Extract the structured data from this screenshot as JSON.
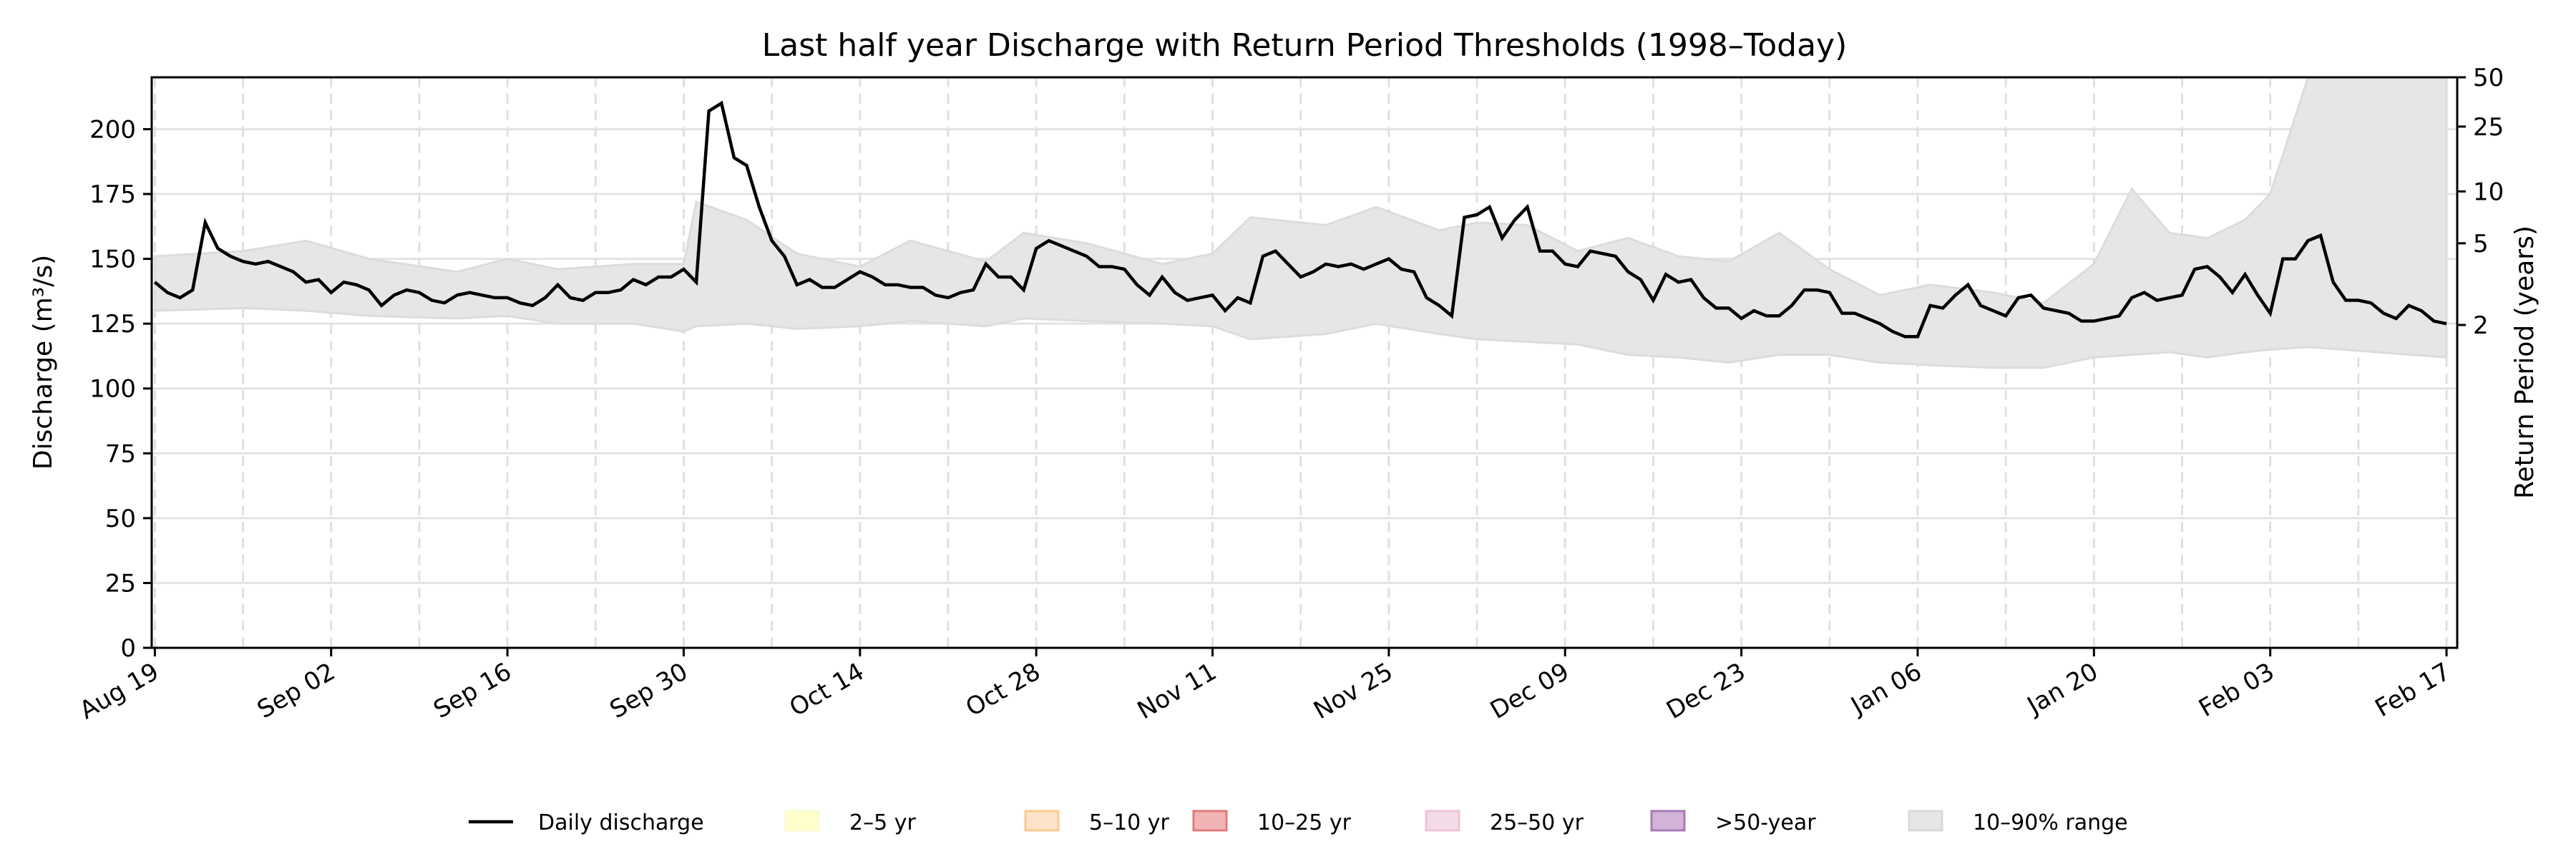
{
  "chart_data": {
    "type": "line",
    "title": "Last half year Discharge with Return Period Thresholds (1998–Today)",
    "ylabel": "Discharge (m³/s)",
    "y2label": "Return Period (years)",
    "ylim": [
      0,
      220
    ],
    "yticks": [
      0,
      25,
      50,
      75,
      100,
      125,
      150,
      175,
      200
    ],
    "y2ticks": [
      {
        "label": "2",
        "discharge": 124.5
      },
      {
        "label": "5",
        "discharge": 156
      },
      {
        "label": "10",
        "discharge": 176
      },
      {
        "label": "25",
        "discharge": 201
      },
      {
        "label": "50",
        "discharge": 220
      }
    ],
    "xticks": [
      "Aug 19",
      "Sep 02",
      "Sep 16",
      "Sep 30",
      "Oct 14",
      "Oct 28",
      "Nov 11",
      "Nov 25",
      "Dec 09",
      "Dec 23",
      "Jan 06",
      "Jan 20",
      "Feb 03",
      "Feb 17"
    ],
    "grid": true,
    "legend_position": "bottom",
    "legend": [
      {
        "label": "Daily discharge",
        "kind": "line",
        "color": "#000000"
      },
      {
        "label": "2–5 yr",
        "kind": "patch",
        "color": "#ffffcc",
        "edge": "#fbfbd0"
      },
      {
        "label": "5–10 yr",
        "kind": "patch",
        "color": "#fde3c8",
        "edge": "#fbc98f"
      },
      {
        "label": "10–25 yr",
        "kind": "patch",
        "color": "#f0b4b4",
        "edge": "#e07b7b"
      },
      {
        "label": "25–50 yr",
        "kind": "patch",
        "color": "#f4dbe8",
        "edge": "#eec3d9"
      },
      {
        "label": ">50-year",
        "kind": "patch",
        "color": "#d1b4d6",
        "edge": "#a97ab5"
      },
      {
        "label": "10–90% range",
        "kind": "patch",
        "color": "#e6e6e6",
        "edge": "#d9d9d9"
      }
    ],
    "series": [
      {
        "name": "Daily discharge",
        "color": "#000000",
        "start": "Aug 19",
        "values": [
          141,
          137,
          135,
          138,
          164,
          154,
          151,
          149,
          148,
          149,
          147,
          145,
          141,
          142,
          137,
          141,
          140,
          138,
          132,
          136,
          138,
          137,
          134,
          133,
          136,
          137,
          136,
          135,
          135,
          133,
          132,
          135,
          140,
          135,
          134,
          137,
          137,
          138,
          142,
          140,
          143,
          143,
          146,
          141,
          207,
          210,
          189,
          186,
          170,
          157,
          151,
          140,
          142,
          139,
          139,
          142,
          145,
          143,
          140,
          140,
          139,
          139,
          136,
          135,
          137,
          138,
          148,
          143,
          143,
          138,
          154,
          157,
          155,
          153,
          151,
          147,
          147,
          146,
          140,
          136,
          143,
          137,
          134,
          135,
          136,
          130,
          135,
          133,
          151,
          153,
          148,
          143,
          145,
          148,
          147,
          148,
          146,
          148,
          150,
          146,
          145,
          135,
          132,
          128,
          166,
          167,
          170,
          158,
          165,
          170,
          153,
          153,
          148,
          147,
          153,
          152,
          151,
          145,
          142,
          134,
          144,
          141,
          142,
          135,
          131,
          131,
          127,
          130,
          128,
          128,
          132,
          138,
          138,
          137,
          129,
          129,
          127,
          125,
          122,
          120,
          120,
          132,
          131,
          136,
          140,
          132,
          130,
          128,
          135,
          136,
          131,
          130,
          129,
          126,
          126,
          127,
          128,
          135,
          137,
          134,
          135,
          136,
          146,
          147,
          143,
          137,
          144,
          136,
          129,
          150,
          150,
          157,
          159,
          141,
          134,
          134,
          133,
          129,
          127,
          132,
          130,
          126,
          125
        ]
      }
    ],
    "band": {
      "name": "10–90% range",
      "color": "#e6e6e6",
      "points": [
        {
          "date": "Aug 19",
          "p10": 130,
          "p90": 151
        },
        {
          "date": "Aug 26",
          "p10": 131,
          "p90": 153
        },
        {
          "date": "Aug 31",
          "p10": 130,
          "p90": 157
        },
        {
          "date": "Sep 05",
          "p10": 128,
          "p90": 150
        },
        {
          "date": "Sep 12",
          "p10": 127,
          "p90": 145
        },
        {
          "date": "Sep 16",
          "p10": 128,
          "p90": 150
        },
        {
          "date": "Sep 20",
          "p10": 125,
          "p90": 146
        },
        {
          "date": "Sep 26",
          "p10": 125,
          "p90": 148
        },
        {
          "date": "Sep 30",
          "p10": 122,
          "p90": 148
        },
        {
          "date": "Oct 01",
          "p10": 124,
          "p90": 172
        },
        {
          "date": "Oct 05",
          "p10": 125,
          "p90": 165
        },
        {
          "date": "Oct 09",
          "p10": 123,
          "p90": 152
        },
        {
          "date": "Oct 14",
          "p10": 124,
          "p90": 147
        },
        {
          "date": "Oct 18",
          "p10": 126,
          "p90": 157
        },
        {
          "date": "Oct 24",
          "p10": 124,
          "p90": 149
        },
        {
          "date": "Oct 27",
          "p10": 127,
          "p90": 160
        },
        {
          "date": "Nov 01",
          "p10": 126,
          "p90": 156
        },
        {
          "date": "Nov 07",
          "p10": 125,
          "p90": 148
        },
        {
          "date": "Nov 11",
          "p10": 124,
          "p90": 152
        },
        {
          "date": "Nov 14",
          "p10": 119,
          "p90": 166
        },
        {
          "date": "Nov 20",
          "p10": 121,
          "p90": 163
        },
        {
          "date": "Nov 24",
          "p10": 125,
          "p90": 170
        },
        {
          "date": "Nov 29",
          "p10": 121,
          "p90": 161
        },
        {
          "date": "Dec 02",
          "p10": 119,
          "p90": 164
        },
        {
          "date": "Dec 06",
          "p10": 118,
          "p90": 163
        },
        {
          "date": "Dec 10",
          "p10": 117,
          "p90": 153
        },
        {
          "date": "Dec 14",
          "p10": 113,
          "p90": 158
        },
        {
          "date": "Dec 18",
          "p10": 112,
          "p90": 151
        },
        {
          "date": "Dec 22",
          "p10": 110,
          "p90": 149
        },
        {
          "date": "Dec 26",
          "p10": 113,
          "p90": 160
        },
        {
          "date": "Dec 30",
          "p10": 113,
          "p90": 146
        },
        {
          "date": "Jan 03",
          "p10": 110,
          "p90": 136
        },
        {
          "date": "Jan 07",
          "p10": 109,
          "p90": 140
        },
        {
          "date": "Jan 12",
          "p10": 108,
          "p90": 137
        },
        {
          "date": "Jan 16",
          "p10": 108,
          "p90": 133
        },
        {
          "date": "Jan 20",
          "p10": 112,
          "p90": 148
        },
        {
          "date": "Jan 23",
          "p10": 113,
          "p90": 177
        },
        {
          "date": "Jan 26",
          "p10": 114,
          "p90": 160
        },
        {
          "date": "Jan 29",
          "p10": 112,
          "p90": 158
        },
        {
          "date": "Feb 01",
          "p10": 114,
          "p90": 165
        },
        {
          "date": "Feb 03",
          "p10": 115,
          "p90": 175
        },
        {
          "date": "Feb 06",
          "p10": 116,
          "p90": 220
        },
        {
          "date": "Feb 17",
          "p10": 112,
          "p90": 220
        }
      ]
    }
  }
}
